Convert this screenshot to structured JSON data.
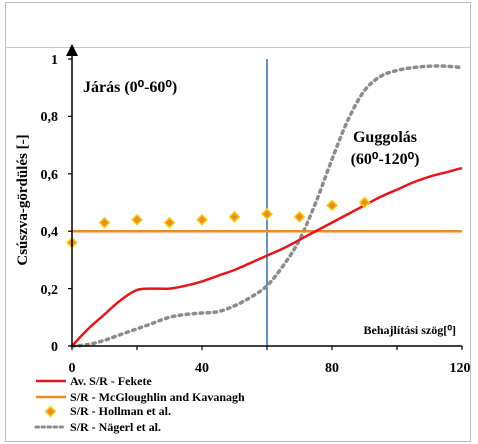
{
  "chart_data": {
    "type": "line",
    "xlabel": "Behajlítási szög[⁰]",
    "ylabel": "Csúszva-gördülés [-]",
    "xlim": [
      0,
      120
    ],
    "ylim": [
      0,
      1
    ],
    "xticks": [
      "0",
      "40",
      "80",
      "120"
    ],
    "yticks": [
      "0",
      "0,2",
      "0,4",
      "0,6",
      "0,8",
      "1"
    ],
    "grid": false,
    "legend_position": "bottom-left",
    "vertical_marker_x": 60,
    "annotations": {
      "walking": "Járás (0⁰-60⁰)",
      "squat_line1": "Guggolás",
      "squat_line2": "(60⁰-120⁰)"
    },
    "series": [
      {
        "name": "Av. S/R - Fekete",
        "style": "line",
        "color": "#e8141b",
        "x": [
          0,
          5,
          10,
          15,
          20,
          25,
          30,
          35,
          40,
          45,
          50,
          55,
          60,
          65,
          70,
          75,
          80,
          85,
          90,
          95,
          100,
          105,
          110,
          115,
          120
        ],
        "y": [
          0,
          0.06,
          0.11,
          0.16,
          0.195,
          0.2,
          0.2,
          0.21,
          0.225,
          0.245,
          0.265,
          0.29,
          0.315,
          0.34,
          0.37,
          0.4,
          0.43,
          0.46,
          0.49,
          0.52,
          0.545,
          0.57,
          0.59,
          0.605,
          0.62
        ]
      },
      {
        "name": "S/R - McGloughlin and Kavanagh",
        "style": "line",
        "color": "#f08a24",
        "x": [
          0,
          120
        ],
        "y": [
          0.4,
          0.4
        ]
      },
      {
        "name": "S/R - Hollman et al.",
        "style": "marker",
        "color": "#f08a24",
        "x": [
          0,
          10,
          20,
          30,
          40,
          50,
          60,
          70,
          80,
          90
        ],
        "y": [
          0.36,
          0.43,
          0.44,
          0.43,
          0.44,
          0.45,
          0.46,
          0.45,
          0.49,
          0.5
        ]
      },
      {
        "name": "S/R - Nägerl et al.",
        "style": "dotted",
        "color": "#8c8c8c",
        "x": [
          0,
          5,
          10,
          15,
          20,
          25,
          30,
          35,
          40,
          45,
          50,
          55,
          60,
          65,
          70,
          75,
          80,
          85,
          90,
          95,
          100,
          105,
          110,
          115,
          120
        ],
        "y": [
          0,
          0.005,
          0.02,
          0.04,
          0.06,
          0.08,
          0.1,
          0.11,
          0.115,
          0.12,
          0.14,
          0.17,
          0.21,
          0.28,
          0.37,
          0.5,
          0.65,
          0.79,
          0.89,
          0.94,
          0.96,
          0.97,
          0.975,
          0.975,
          0.97
        ]
      }
    ]
  }
}
